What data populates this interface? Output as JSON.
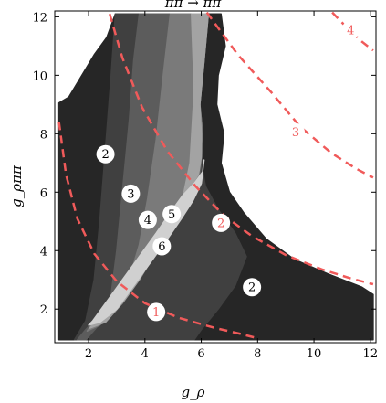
{
  "chart_data": {
    "type": "heatmap",
    "title": "ππ → ππ",
    "xlabel": "g_ρ",
    "ylabel": "g_ρππ",
    "xlim": [
      0.8,
      12.2
    ],
    "ylim": [
      0.85,
      12.2
    ],
    "x_ticks": [
      "2",
      "4",
      "6",
      "8",
      "10",
      "12"
    ],
    "y_ticks": [
      "2",
      "4",
      "6",
      "8",
      "10",
      "12"
    ],
    "x_tick_values": [
      2,
      4,
      6,
      8,
      10,
      12
    ],
    "y_tick_values": [
      2,
      4,
      6,
      8,
      10,
      12
    ],
    "grid": false,
    "colors": {
      "region_2": "#262626",
      "region_3": "#404040",
      "region_4": "#5c5c5c",
      "region_5": "#7a7a7a",
      "region_6": "#a3a3a3",
      "region_7": "#d0d0d0",
      "contour": "#f05a5a"
    },
    "region_labels": [
      {
        "text": "2",
        "x": 2.6,
        "y": 7.3
      },
      {
        "text": "3",
        "x": 3.5,
        "y": 5.95
      },
      {
        "text": "4",
        "x": 4.1,
        "y": 5.05
      },
      {
        "text": "5",
        "x": 4.95,
        "y": 5.25
      },
      {
        "text": "6",
        "x": 4.6,
        "y": 4.15
      },
      {
        "text": "2",
        "x": 7.8,
        "y": 2.75
      }
    ],
    "contour_labels": [
      {
        "text": "1",
        "x": 4.4,
        "y": 1.9
      },
      {
        "text": "2",
        "x": 6.7,
        "y": 4.95
      },
      {
        "text": "3",
        "x": 9.35,
        "y": 8.05
      },
      {
        "text": "4",
        "x": 11.3,
        "y": 11.55
      }
    ],
    "contour_lines": [
      {
        "level": "1",
        "points": [
          [
            0.95,
            8.4
          ],
          [
            1.2,
            6.6
          ],
          [
            1.6,
            5.1
          ],
          [
            2.2,
            3.9
          ],
          [
            3.0,
            2.95
          ],
          [
            4.0,
            2.2
          ],
          [
            5.2,
            1.7
          ],
          [
            6.5,
            1.35
          ],
          [
            7.4,
            1.15
          ],
          [
            8.0,
            1.0
          ]
        ]
      },
      {
        "level": "2",
        "points": [
          [
            2.75,
            12.1
          ],
          [
            3.2,
            10.6
          ],
          [
            3.9,
            8.9
          ],
          [
            4.8,
            7.4
          ],
          [
            5.8,
            6.2
          ],
          [
            6.8,
            5.2
          ],
          [
            7.8,
            4.5
          ],
          [
            9.0,
            3.85
          ],
          [
            10.3,
            3.35
          ],
          [
            11.3,
            3.05
          ],
          [
            12.1,
            2.85
          ]
        ]
      },
      {
        "level": "3",
        "points": [
          [
            6.2,
            12.15
          ],
          [
            7.3,
            10.7
          ],
          [
            8.5,
            9.4
          ],
          [
            9.5,
            8.25
          ],
          [
            10.6,
            7.35
          ],
          [
            11.5,
            6.8
          ],
          [
            12.1,
            6.5
          ]
        ]
      },
      {
        "level": "4",
        "points": [
          [
            10.65,
            12.15
          ],
          [
            11.2,
            11.6
          ],
          [
            11.7,
            11.15
          ],
          [
            12.1,
            10.85
          ]
        ]
      }
    ]
  }
}
